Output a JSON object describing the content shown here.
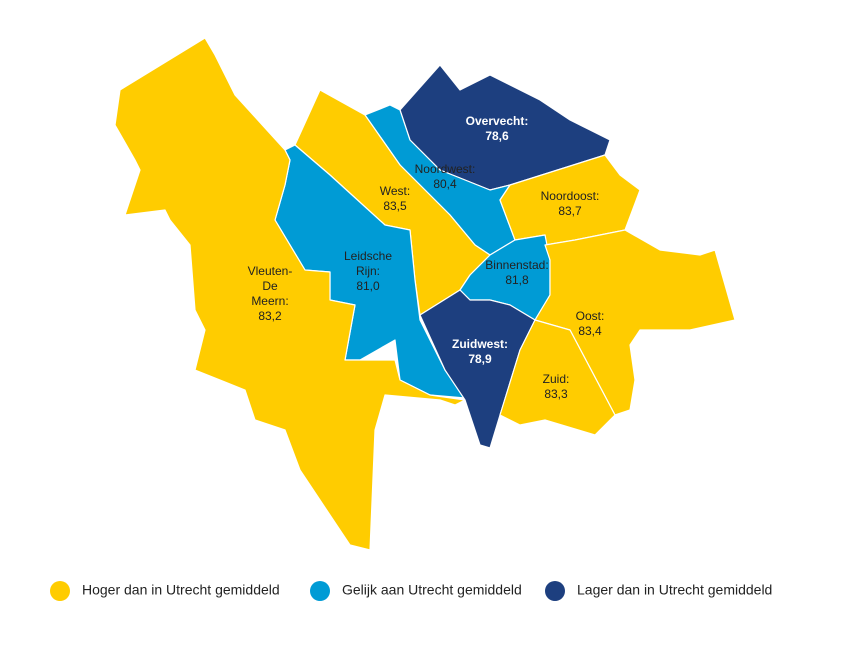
{
  "districts": [
    {
      "label_lines": [
        "Overvecht:"
      ],
      "value": "78,6",
      "color": "#1d3f7f"
    },
    {
      "label_lines": [
        "Noordwest:"
      ],
      "value": "80,4",
      "color": "#009bd5"
    },
    {
      "label_lines": [
        "West:"
      ],
      "value": "83,5",
      "color": "#ffcc00"
    },
    {
      "label_lines": [
        "Noordoost:"
      ],
      "value": "83,7",
      "color": "#ffcc00"
    },
    {
      "label_lines": [
        "Leidsche",
        "Rijn:"
      ],
      "value": "81,0",
      "color": "#009bd5"
    },
    {
      "label_lines": [
        "Binnenstad:"
      ],
      "value": "81,8",
      "color": "#009bd5"
    },
    {
      "label_lines": [
        "Vleuten-",
        "De",
        "Meern:"
      ],
      "value": "83,2",
      "color": "#ffcc00"
    },
    {
      "label_lines": [
        "Oost:"
      ],
      "value": "83,4",
      "color": "#ffcc00"
    },
    {
      "label_lines": [
        "Zuidwest:"
      ],
      "value": "78,9",
      "color": "#1d3f7f"
    },
    {
      "label_lines": [
        "Zuid:"
      ],
      "value": "83,3",
      "color": "#ffcc00"
    }
  ],
  "legend": [
    {
      "label": "Hoger dan in Utrecht gemiddeld",
      "color": "#ffcc00"
    },
    {
      "label": "Gelijk aan Utrecht gemiddeld",
      "color": "#009bd5"
    },
    {
      "label": "Lager dan in Utrecht gemiddeld",
      "color": "#1d3f7f"
    }
  ]
}
